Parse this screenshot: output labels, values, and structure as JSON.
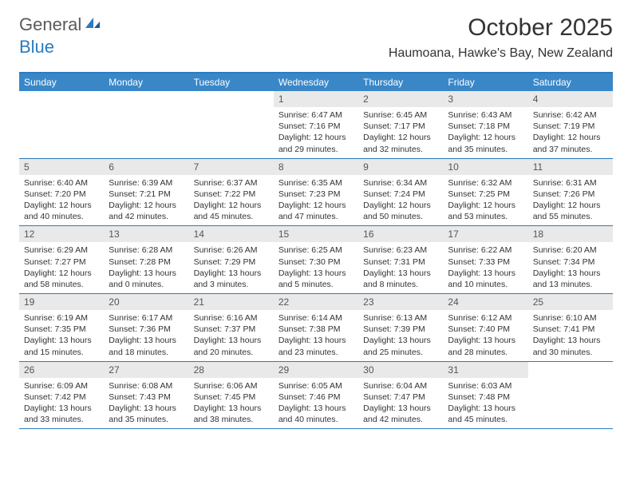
{
  "logo": {
    "part1": "General",
    "part2": "Blue"
  },
  "title": "October 2025",
  "location": "Haumoana, Hawke's Bay, New Zealand",
  "dayNames": [
    "Sunday",
    "Monday",
    "Tuesday",
    "Wednesday",
    "Thursday",
    "Friday",
    "Saturday"
  ],
  "colors": {
    "headerBar": "#3a87c8",
    "accent": "#2b7bbf",
    "dayNumBg": "#e9e9e9",
    "text": "#333333"
  },
  "weeks": [
    [
      {
        "empty": true
      },
      {
        "empty": true
      },
      {
        "empty": true
      },
      {
        "day": "1",
        "sunrise": "Sunrise: 6:47 AM",
        "sunset": "Sunset: 7:16 PM",
        "daylight1": "Daylight: 12 hours",
        "daylight2": "and 29 minutes."
      },
      {
        "day": "2",
        "sunrise": "Sunrise: 6:45 AM",
        "sunset": "Sunset: 7:17 PM",
        "daylight1": "Daylight: 12 hours",
        "daylight2": "and 32 minutes."
      },
      {
        "day": "3",
        "sunrise": "Sunrise: 6:43 AM",
        "sunset": "Sunset: 7:18 PM",
        "daylight1": "Daylight: 12 hours",
        "daylight2": "and 35 minutes."
      },
      {
        "day": "4",
        "sunrise": "Sunrise: 6:42 AM",
        "sunset": "Sunset: 7:19 PM",
        "daylight1": "Daylight: 12 hours",
        "daylight2": "and 37 minutes."
      }
    ],
    [
      {
        "day": "5",
        "sunrise": "Sunrise: 6:40 AM",
        "sunset": "Sunset: 7:20 PM",
        "daylight1": "Daylight: 12 hours",
        "daylight2": "and 40 minutes."
      },
      {
        "day": "6",
        "sunrise": "Sunrise: 6:39 AM",
        "sunset": "Sunset: 7:21 PM",
        "daylight1": "Daylight: 12 hours",
        "daylight2": "and 42 minutes."
      },
      {
        "day": "7",
        "sunrise": "Sunrise: 6:37 AM",
        "sunset": "Sunset: 7:22 PM",
        "daylight1": "Daylight: 12 hours",
        "daylight2": "and 45 minutes."
      },
      {
        "day": "8",
        "sunrise": "Sunrise: 6:35 AM",
        "sunset": "Sunset: 7:23 PM",
        "daylight1": "Daylight: 12 hours",
        "daylight2": "and 47 minutes."
      },
      {
        "day": "9",
        "sunrise": "Sunrise: 6:34 AM",
        "sunset": "Sunset: 7:24 PM",
        "daylight1": "Daylight: 12 hours",
        "daylight2": "and 50 minutes."
      },
      {
        "day": "10",
        "sunrise": "Sunrise: 6:32 AM",
        "sunset": "Sunset: 7:25 PM",
        "daylight1": "Daylight: 12 hours",
        "daylight2": "and 53 minutes."
      },
      {
        "day": "11",
        "sunrise": "Sunrise: 6:31 AM",
        "sunset": "Sunset: 7:26 PM",
        "daylight1": "Daylight: 12 hours",
        "daylight2": "and 55 minutes."
      }
    ],
    [
      {
        "day": "12",
        "sunrise": "Sunrise: 6:29 AM",
        "sunset": "Sunset: 7:27 PM",
        "daylight1": "Daylight: 12 hours",
        "daylight2": "and 58 minutes."
      },
      {
        "day": "13",
        "sunrise": "Sunrise: 6:28 AM",
        "sunset": "Sunset: 7:28 PM",
        "daylight1": "Daylight: 13 hours",
        "daylight2": "and 0 minutes."
      },
      {
        "day": "14",
        "sunrise": "Sunrise: 6:26 AM",
        "sunset": "Sunset: 7:29 PM",
        "daylight1": "Daylight: 13 hours",
        "daylight2": "and 3 minutes."
      },
      {
        "day": "15",
        "sunrise": "Sunrise: 6:25 AM",
        "sunset": "Sunset: 7:30 PM",
        "daylight1": "Daylight: 13 hours",
        "daylight2": "and 5 minutes."
      },
      {
        "day": "16",
        "sunrise": "Sunrise: 6:23 AM",
        "sunset": "Sunset: 7:31 PM",
        "daylight1": "Daylight: 13 hours",
        "daylight2": "and 8 minutes."
      },
      {
        "day": "17",
        "sunrise": "Sunrise: 6:22 AM",
        "sunset": "Sunset: 7:33 PM",
        "daylight1": "Daylight: 13 hours",
        "daylight2": "and 10 minutes."
      },
      {
        "day": "18",
        "sunrise": "Sunrise: 6:20 AM",
        "sunset": "Sunset: 7:34 PM",
        "daylight1": "Daylight: 13 hours",
        "daylight2": "and 13 minutes."
      }
    ],
    [
      {
        "day": "19",
        "sunrise": "Sunrise: 6:19 AM",
        "sunset": "Sunset: 7:35 PM",
        "daylight1": "Daylight: 13 hours",
        "daylight2": "and 15 minutes."
      },
      {
        "day": "20",
        "sunrise": "Sunrise: 6:17 AM",
        "sunset": "Sunset: 7:36 PM",
        "daylight1": "Daylight: 13 hours",
        "daylight2": "and 18 minutes."
      },
      {
        "day": "21",
        "sunrise": "Sunrise: 6:16 AM",
        "sunset": "Sunset: 7:37 PM",
        "daylight1": "Daylight: 13 hours",
        "daylight2": "and 20 minutes."
      },
      {
        "day": "22",
        "sunrise": "Sunrise: 6:14 AM",
        "sunset": "Sunset: 7:38 PM",
        "daylight1": "Daylight: 13 hours",
        "daylight2": "and 23 minutes."
      },
      {
        "day": "23",
        "sunrise": "Sunrise: 6:13 AM",
        "sunset": "Sunset: 7:39 PM",
        "daylight1": "Daylight: 13 hours",
        "daylight2": "and 25 minutes."
      },
      {
        "day": "24",
        "sunrise": "Sunrise: 6:12 AM",
        "sunset": "Sunset: 7:40 PM",
        "daylight1": "Daylight: 13 hours",
        "daylight2": "and 28 minutes."
      },
      {
        "day": "25",
        "sunrise": "Sunrise: 6:10 AM",
        "sunset": "Sunset: 7:41 PM",
        "daylight1": "Daylight: 13 hours",
        "daylight2": "and 30 minutes."
      }
    ],
    [
      {
        "day": "26",
        "sunrise": "Sunrise: 6:09 AM",
        "sunset": "Sunset: 7:42 PM",
        "daylight1": "Daylight: 13 hours",
        "daylight2": "and 33 minutes."
      },
      {
        "day": "27",
        "sunrise": "Sunrise: 6:08 AM",
        "sunset": "Sunset: 7:43 PM",
        "daylight1": "Daylight: 13 hours",
        "daylight2": "and 35 minutes."
      },
      {
        "day": "28",
        "sunrise": "Sunrise: 6:06 AM",
        "sunset": "Sunset: 7:45 PM",
        "daylight1": "Daylight: 13 hours",
        "daylight2": "and 38 minutes."
      },
      {
        "day": "29",
        "sunrise": "Sunrise: 6:05 AM",
        "sunset": "Sunset: 7:46 PM",
        "daylight1": "Daylight: 13 hours",
        "daylight2": "and 40 minutes."
      },
      {
        "day": "30",
        "sunrise": "Sunrise: 6:04 AM",
        "sunset": "Sunset: 7:47 PM",
        "daylight1": "Daylight: 13 hours",
        "daylight2": "and 42 minutes."
      },
      {
        "day": "31",
        "sunrise": "Sunrise: 6:03 AM",
        "sunset": "Sunset: 7:48 PM",
        "daylight1": "Daylight: 13 hours",
        "daylight2": "and 45 minutes."
      },
      {
        "empty": true
      }
    ]
  ]
}
